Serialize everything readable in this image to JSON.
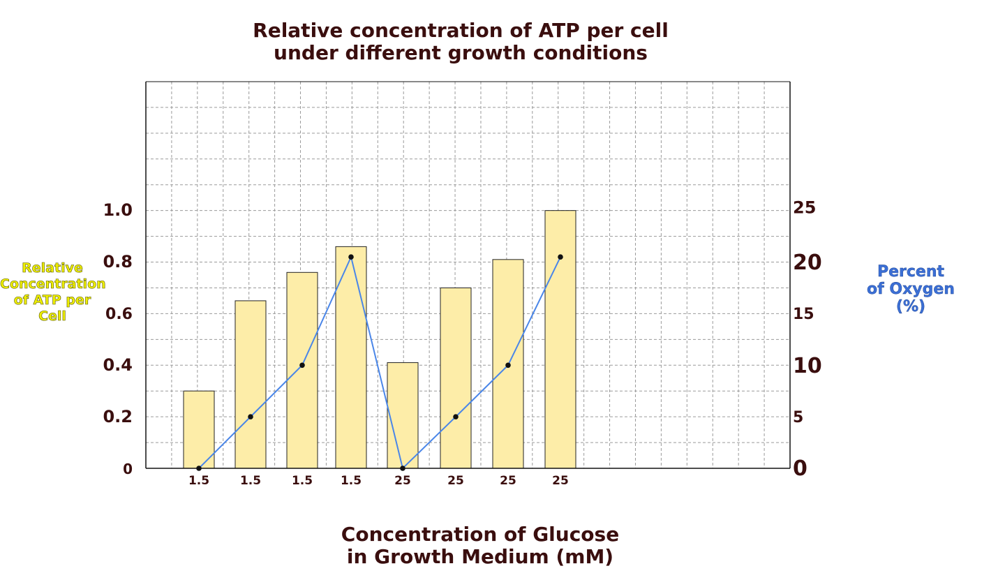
{
  "chart_data": {
    "type": "bar",
    "title_line1": "Relative concentration of ATP per cell",
    "title_line2": "under different growth conditions",
    "xlabel_line1": "Concentration of Glucose",
    "xlabel_line2": "in Growth Medium (mM)",
    "ylabel_left_lines": [
      "Relative",
      "Concentration",
      "of ATP per Cell"
    ],
    "ylabel_right_lines": [
      "Percent",
      "of Oxygen",
      "(%)"
    ],
    "categories": [
      "1.5",
      "1.5",
      "1.5",
      "1.5",
      "25",
      "25",
      "25",
      "25"
    ],
    "series": [
      {
        "type": "bar",
        "axis": "left",
        "values": [
          0.3,
          0.65,
          0.76,
          0.86,
          0.41,
          0.7,
          0.81,
          1.0
        ]
      },
      {
        "type": "line",
        "axis": "right",
        "values": [
          0,
          5,
          10,
          20.5,
          0,
          5,
          10,
          20.5
        ]
      }
    ],
    "ylim_left": [
      0,
      1.5
    ],
    "ylim_right": [
      0,
      37.5
    ],
    "yticks_left": [
      "0",
      "0.2",
      "0.4",
      "0.6",
      "0.8",
      "1.0"
    ],
    "yticks_right": [
      "0",
      "5",
      "10",
      "15",
      "20",
      "25"
    ],
    "grid": true,
    "colors": {
      "bar": "#fdeda8",
      "line": "#4a86e8",
      "text": "#3a0e0e"
    }
  }
}
